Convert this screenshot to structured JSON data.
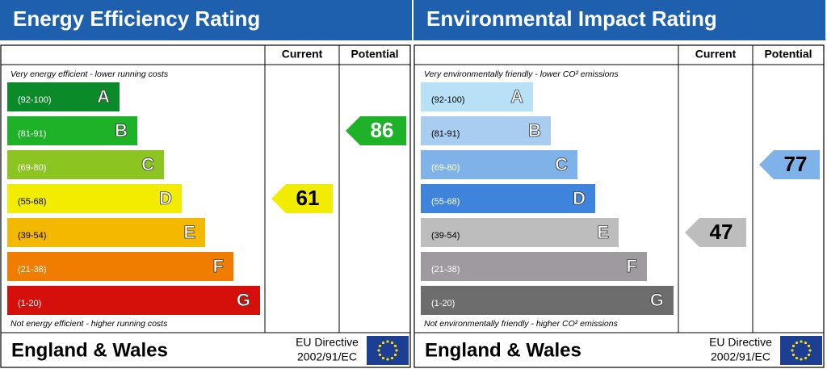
{
  "panels": [
    {
      "title": "Energy Efficiency Rating",
      "columns": [
        "Current",
        "Potential"
      ],
      "top_note": "Very energy efficient - lower running costs",
      "bottom_note": "Not energy efficient - higher running costs",
      "bands": [
        {
          "range": "(92-100)",
          "letter": "A",
          "color": "#0b8a2a",
          "text_color": "#ffffff"
        },
        {
          "range": "(81-91)",
          "letter": "B",
          "color": "#1db227",
          "text_color": "#ffffff"
        },
        {
          "range": "(69-80)",
          "letter": "C",
          "color": "#8cc522",
          "text_color": "#ffffff"
        },
        {
          "range": "(55-68)",
          "letter": "D",
          "color": "#f2ec00",
          "text_color": "#000000"
        },
        {
          "range": "(39-54)",
          "letter": "E",
          "color": "#f5b800",
          "text_color": "#000000"
        },
        {
          "range": "(21-38)",
          "letter": "F",
          "color": "#f07c00",
          "text_color": "#ffffff"
        },
        {
          "range": "(1-20)",
          "letter": "G",
          "color": "#d50f0a",
          "text_color": "#ffffff"
        }
      ],
      "current": {
        "value": 61,
        "text_color": "#000000"
      },
      "potential": {
        "value": 86,
        "text_color": "#ffffff"
      },
      "footer": "England & Wales",
      "directive": [
        "EU Directive",
        "2002/91/EC"
      ]
    },
    {
      "title": "Environmental Impact Rating",
      "columns": [
        "Current",
        "Potential"
      ],
      "top_note": "Very environmentally friendly - lower CO² emissions",
      "bottom_note": "Not environmentally friendly - higher CO² emissions",
      "bands": [
        {
          "range": "(92-100)",
          "letter": "A",
          "color": "#b8e1f7",
          "text_color": "#000000"
        },
        {
          "range": "(81-91)",
          "letter": "B",
          "color": "#a9cdf0",
          "text_color": "#000000"
        },
        {
          "range": "(69-80)",
          "letter": "C",
          "color": "#7fb2e8",
          "text_color": "#ffffff"
        },
        {
          "range": "(55-68)",
          "letter": "D",
          "color": "#3f84dc",
          "text_color": "#ffffff"
        },
        {
          "range": "(39-54)",
          "letter": "E",
          "color": "#bdbdbd",
          "text_color": "#000000"
        },
        {
          "range": "(21-38)",
          "letter": "F",
          "color": "#9e9aa0",
          "text_color": "#ffffff"
        },
        {
          "range": "(1-20)",
          "letter": "G",
          "color": "#6d6d6d",
          "text_color": "#ffffff"
        }
      ],
      "current": {
        "value": 47,
        "text_color": "#000000"
      },
      "potential": {
        "value": 77,
        "text_color": "#000000"
      },
      "footer": "England & Wales",
      "directive": [
        "EU Directive",
        "2002/91/EC"
      ]
    }
  ]
}
